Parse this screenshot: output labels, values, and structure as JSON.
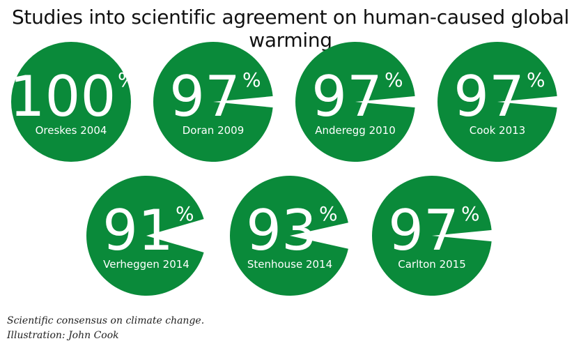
{
  "chart_data": {
    "type": "pie",
    "title": "Studies into scientific agreement on human-caused global warming",
    "unit": "%",
    "color": "#0a8a3a",
    "studies": [
      {
        "label": "Oreskes 2004",
        "value": 100
      },
      {
        "label": "Doran 2009",
        "value": 97
      },
      {
        "label": "Anderegg 2010",
        "value": 97
      },
      {
        "label": "Cook 2013",
        "value": 97
      },
      {
        "label": "Verheggen 2014",
        "value": 91
      },
      {
        "label": "Stenhouse 2014",
        "value": 93
      },
      {
        "label": "Carlton 2015",
        "value": 97
      }
    ]
  },
  "caption": {
    "line1": "Scientific consensus on climate change.",
    "line2": "Illustration: John Cook"
  }
}
